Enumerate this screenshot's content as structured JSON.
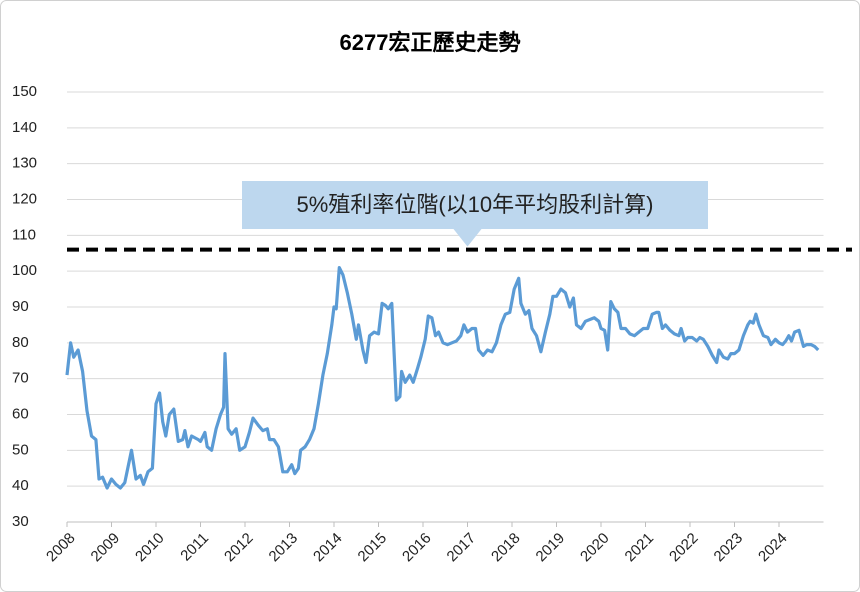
{
  "chart_data": {
    "type": "line",
    "title": "6277宏正歷史走勢",
    "color": "#5b9bd5",
    "x": [
      2008.0,
      2008.08,
      2008.15,
      2008.25,
      2008.35,
      2008.45,
      2008.55,
      2008.65,
      2008.72,
      2008.8,
      2008.9,
      2009.0,
      2009.1,
      2009.2,
      2009.3,
      2009.45,
      2009.55,
      2009.65,
      2009.72,
      2009.82,
      2009.92,
      2010.0,
      2010.08,
      2010.15,
      2010.22,
      2010.3,
      2010.4,
      2010.5,
      2010.6,
      2010.65,
      2010.72,
      2010.8,
      2010.95,
      2011.0,
      2011.1,
      2011.15,
      2011.25,
      2011.35,
      2011.45,
      2011.52,
      2011.55,
      2011.62,
      2011.7,
      2011.8,
      2011.88,
      2012.0,
      2012.1,
      2012.18,
      2012.3,
      2012.4,
      2012.5,
      2012.55,
      2012.65,
      2012.75,
      2012.85,
      2012.95,
      2013.05,
      2013.12,
      2013.2,
      2013.25,
      2013.35,
      2013.45,
      2013.55,
      2013.65,
      2013.75,
      2013.85,
      2013.95,
      2014.0,
      2014.05,
      2014.12,
      2014.2,
      2014.3,
      2014.4,
      2014.5,
      2014.55,
      2014.65,
      2014.72,
      2014.8,
      2014.9,
      2015.0,
      2015.08,
      2015.15,
      2015.22,
      2015.3,
      2015.4,
      2015.48,
      2015.52,
      2015.6,
      2015.7,
      2015.78,
      2015.88,
      2015.95,
      2016.05,
      2016.12,
      2016.2,
      2016.28,
      2016.35,
      2016.45,
      2016.55,
      2016.65,
      2016.75,
      2016.85,
      2016.92,
      2017.0,
      2017.1,
      2017.18,
      2017.25,
      2017.35,
      2017.45,
      2017.55,
      2017.65,
      2017.75,
      2017.85,
      2017.95,
      2018.05,
      2018.15,
      2018.2,
      2018.3,
      2018.38,
      2018.45,
      2018.55,
      2018.65,
      2018.75,
      2018.85,
      2018.92,
      2019.0,
      2019.1,
      2019.2,
      2019.3,
      2019.38,
      2019.45,
      2019.55,
      2019.65,
      2019.75,
      2019.85,
      2019.95,
      2020.0,
      2020.08,
      2020.15,
      2020.22,
      2020.3,
      2020.38,
      2020.45,
      2020.55,
      2020.65,
      2020.75,
      2020.85,
      2020.95,
      2021.05,
      2021.15,
      2021.25,
      2021.3,
      2021.38,
      2021.45,
      2021.55,
      2021.65,
      2021.75,
      2021.8,
      2021.88,
      2021.95,
      2022.05,
      2022.15,
      2022.22,
      2022.3,
      2022.4,
      2022.5,
      2022.6,
      2022.65,
      2022.75,
      2022.85,
      2022.92,
      2023.0,
      2023.1,
      2023.2,
      2023.3,
      2023.35,
      2023.42,
      2023.48,
      2023.55,
      2023.65,
      2023.75,
      2023.82,
      2023.92,
      2024.0,
      2024.08,
      2024.15,
      2024.22,
      2024.28,
      2024.35,
      2024.45,
      2024.55,
      2024.62,
      2024.72,
      2024.8,
      2024.88
    ],
    "values": [
      71,
      80,
      76,
      78,
      72,
      61,
      54,
      53,
      42,
      42.5,
      39.5,
      42,
      40.5,
      39.5,
      41,
      50,
      42,
      43,
      40.5,
      44,
      45,
      63,
      66,
      58,
      54,
      60,
      61.5,
      52.5,
      53,
      55.5,
      51,
      54,
      53,
      52.5,
      55,
      51,
      50,
      56,
      60,
      62,
      77,
      56,
      54.5,
      56,
      50,
      51,
      55,
      59,
      57,
      55.5,
      56,
      53,
      53,
      51,
      44,
      44,
      46,
      43.5,
      45,
      50,
      51,
      53,
      56,
      63,
      71,
      77,
      85,
      90,
      89.5,
      101,
      99,
      94,
      88,
      81,
      85,
      78,
      74.5,
      82,
      83,
      82.5,
      91,
      90.5,
      89.5,
      91,
      64,
      65,
      72,
      69,
      71,
      69,
      73,
      76,
      81,
      87.5,
      87,
      82,
      83,
      80,
      79.5,
      80,
      80.5,
      82,
      85,
      83,
      84,
      84,
      78,
      76.5,
      78,
      77.5,
      80,
      85,
      88,
      88.5,
      95,
      98,
      91,
      88,
      89,
      84,
      82,
      77.5,
      83,
      88,
      93,
      93,
      95,
      94,
      90,
      92.5,
      85,
      84,
      86,
      86.5,
      87,
      86,
      84,
      83.5,
      78,
      91.5,
      89.5,
      88.5,
      84,
      84,
      82.5,
      82,
      83,
      84,
      84,
      88,
      88.5,
      88.5,
      84,
      85,
      83.5,
      82.5,
      82,
      84,
      80.5,
      81.5,
      81.5,
      80.5,
      81.5,
      81,
      79,
      76.5,
      74.5,
      78,
      76,
      75.5,
      77,
      77,
      78,
      82,
      85,
      86,
      85.5,
      88,
      85,
      82,
      81.5,
      79.5,
      81,
      80,
      79.5,
      80.5,
      82,
      80.5,
      83,
      83.5,
      79,
      79.5,
      79.5,
      79,
      78
    ],
    "xlim": [
      2008,
      2025
    ],
    "xticks": [
      2008,
      2009,
      2010,
      2011,
      2012,
      2013,
      2014,
      2015,
      2016,
      2017,
      2018,
      2019,
      2020,
      2021,
      2022,
      2023,
      2024
    ],
    "ylim": [
      30,
      150
    ],
    "yticks": [
      30,
      40,
      50,
      60,
      70,
      80,
      90,
      100,
      110,
      120,
      130,
      140,
      150
    ],
    "grid": true,
    "annotation": {
      "text": "5%殖利率位階(以10年平均股利計算)",
      "value": 106,
      "x": 2017
    }
  }
}
